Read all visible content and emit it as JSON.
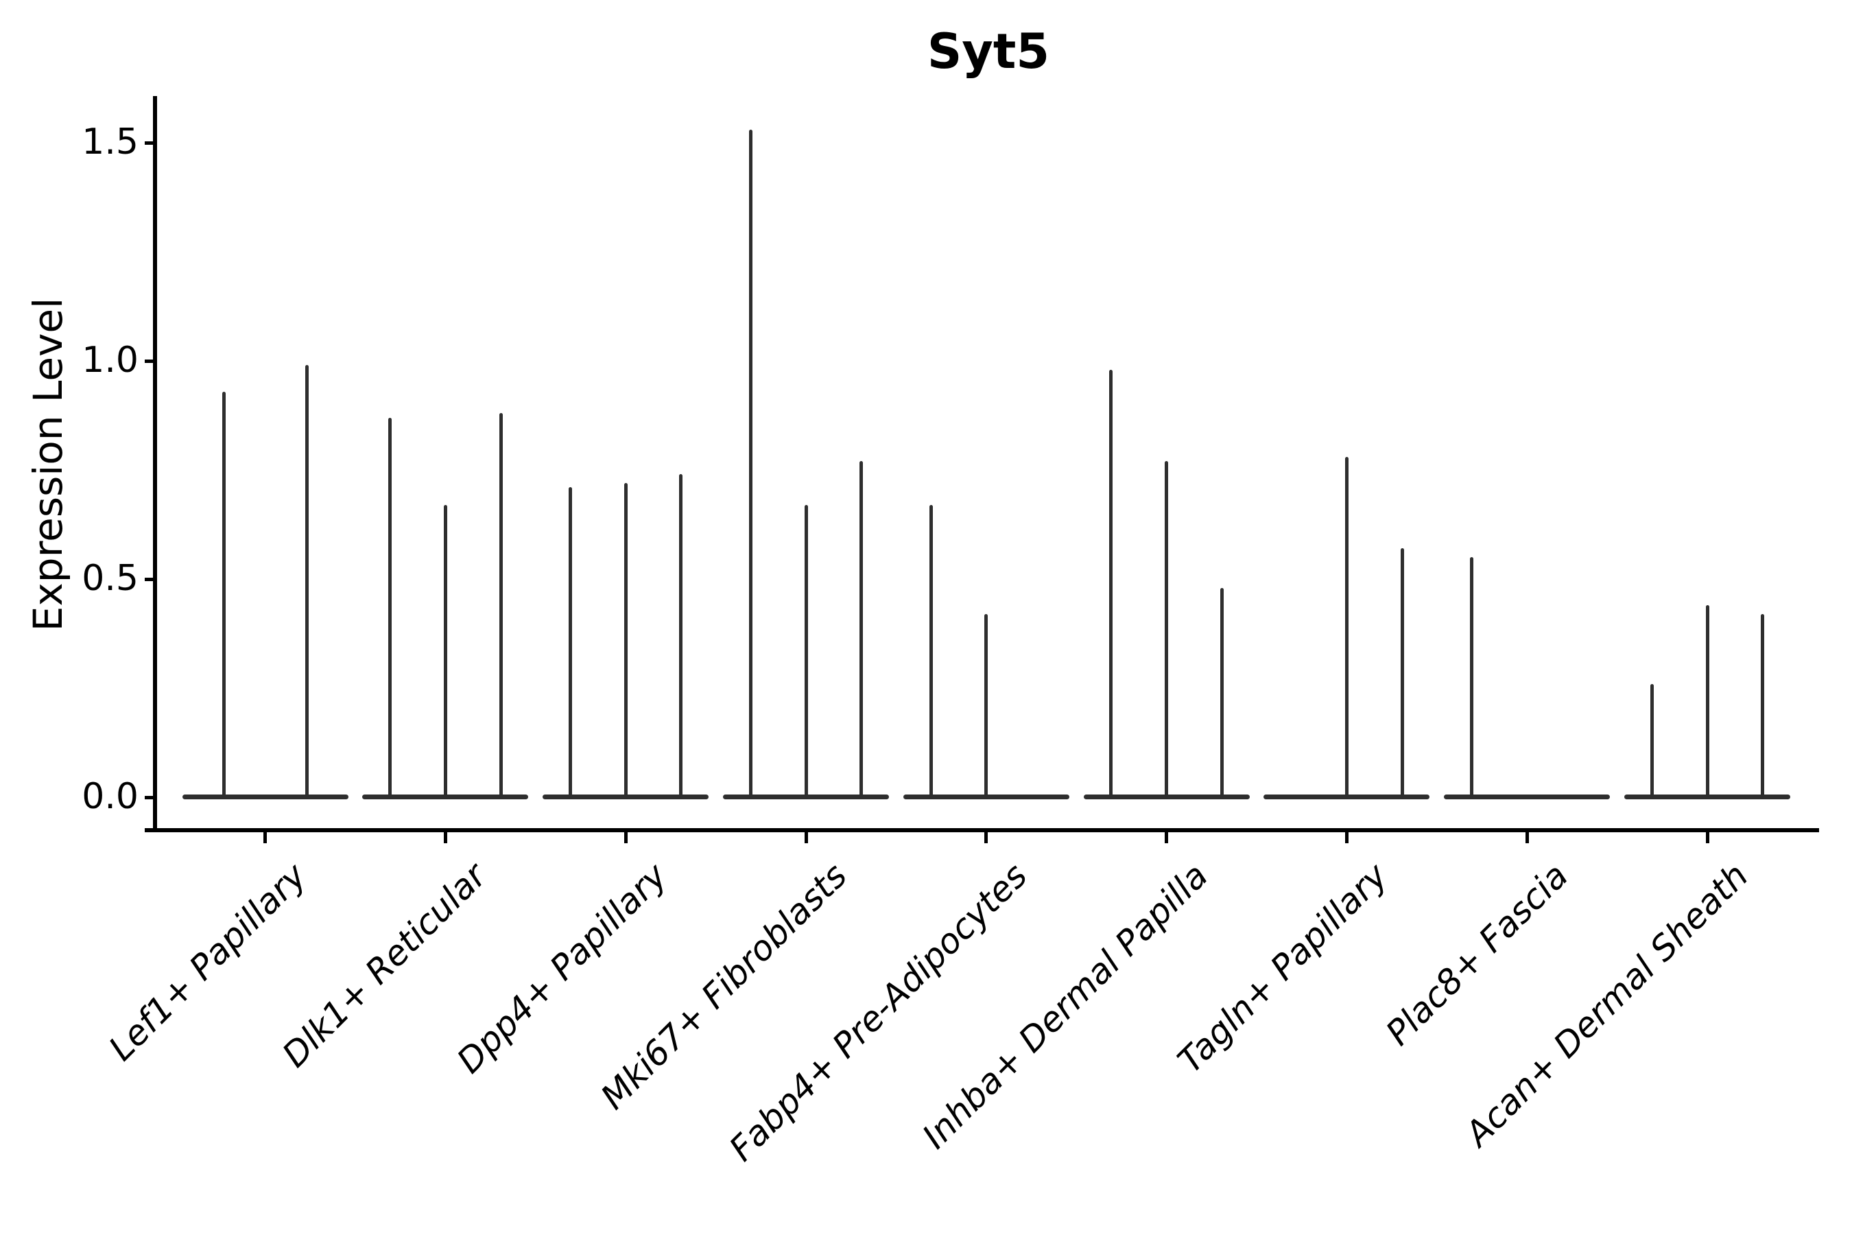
{
  "title": "Syt5",
  "y_axis": {
    "label": "Expression Level",
    "tick_labels": [
      "0.0",
      "0.5",
      "1.0",
      "1.5"
    ]
  },
  "x_axis": {
    "categories": [
      "Lef1+ Papillary",
      "Dlk1+ Reticular",
      "Dpp4+ Papillary",
      "Mki67+ Fibroblasts",
      "Fabp4+ Pre-Adipocytes",
      "Inhba+ Dermal Papilla",
      "Tagln+ Papillary",
      "Plac8+ Fascia",
      "Acan+ Dermal Sheath"
    ]
  },
  "colors": {
    "violin": "#2e2e2e",
    "axis": "#000000",
    "text": "#000000",
    "background": "#ffffff"
  },
  "chart_data": {
    "type": "violin",
    "title": "Syt5",
    "xlabel": "",
    "ylabel": "Expression Level",
    "ylim": [
      -0.07,
      1.6
    ],
    "yticks": [
      0.0,
      0.5,
      1.0,
      1.5
    ],
    "grid": false,
    "legend_position": "none",
    "categories": [
      "Lef1+ Papillary",
      "Dlk1+ Reticular",
      "Dpp4+ Papillary",
      "Mki67+ Fibroblasts",
      "Fabp4+ Pre-Adipocytes",
      "Inhba+ Dermal Papilla",
      "Tagln+ Papillary",
      "Plac8+ Fascia",
      "Acan+ Dermal Sheath"
    ],
    "groups": [
      {
        "category": "Lef1+ Papillary",
        "violin_max_expression": [
          0.93,
          0.99
        ]
      },
      {
        "category": "Dlk1+ Reticular",
        "violin_max_expression": [
          0.87,
          0.67,
          0.88
        ]
      },
      {
        "category": "Dpp4+ Papillary",
        "violin_max_expression": [
          0.71,
          0.72,
          0.74
        ]
      },
      {
        "category": "Mki67+ Fibroblasts",
        "violin_max_expression": [
          1.53,
          0.67,
          0.77
        ]
      },
      {
        "category": "Fabp4+ Pre-Adipocytes",
        "violin_max_expression": [
          0.67,
          0.42,
          null
        ]
      },
      {
        "category": "Inhba+ Dermal Papilla",
        "violin_max_expression": [
          0.98,
          0.77,
          0.48
        ]
      },
      {
        "category": "Tagln+ Papillary",
        "violin_max_expression": [
          null,
          0.78,
          0.57
        ]
      },
      {
        "category": "Plac8+ Fascia",
        "violin_max_expression": [
          0.55,
          null,
          null
        ]
      },
      {
        "category": "Acan+ Dermal Sheath",
        "violin_max_expression": [
          0.26,
          0.44,
          0.42
        ]
      }
    ]
  }
}
